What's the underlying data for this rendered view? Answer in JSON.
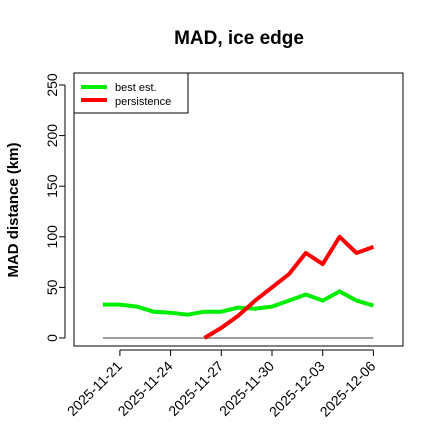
{
  "chart_data": {
    "type": "line",
    "title": "MAD, ice edge",
    "xlabel": "",
    "ylabel": "MAD distance (km)",
    "ylim": [
      0,
      250
    ],
    "yticks": [
      0,
      50,
      100,
      150,
      200,
      250
    ],
    "xticks": [
      "2025-11-21",
      "2025-11-24",
      "2025-11-27",
      "2025-11-30",
      "2025-12-03",
      "2025-12-06"
    ],
    "x": [
      "2025-11-20",
      "2025-11-21",
      "2025-11-22",
      "2025-11-23",
      "2025-11-24",
      "2025-11-25",
      "2025-11-26",
      "2025-11-27",
      "2025-11-28",
      "2025-11-29",
      "2025-11-30",
      "2025-12-01",
      "2025-12-02",
      "2025-12-03",
      "2025-12-04",
      "2025-12-05",
      "2025-12-06"
    ],
    "legend_position": "top-left",
    "series": [
      {
        "name": "best est.",
        "color": "#00ee00",
        "values": [
          33,
          33,
          31,
          26,
          25,
          23,
          26,
          26,
          30,
          29,
          31,
          37,
          43,
          37,
          46,
          37,
          32
        ]
      },
      {
        "name": "persistence",
        "color": "#ff0000",
        "values": [
          null,
          null,
          null,
          null,
          null,
          null,
          0,
          10,
          22,
          37,
          50,
          63,
          84,
          73,
          100,
          84,
          90
        ]
      }
    ],
    "reference_line": {
      "value": 0,
      "color": "#808080"
    }
  }
}
